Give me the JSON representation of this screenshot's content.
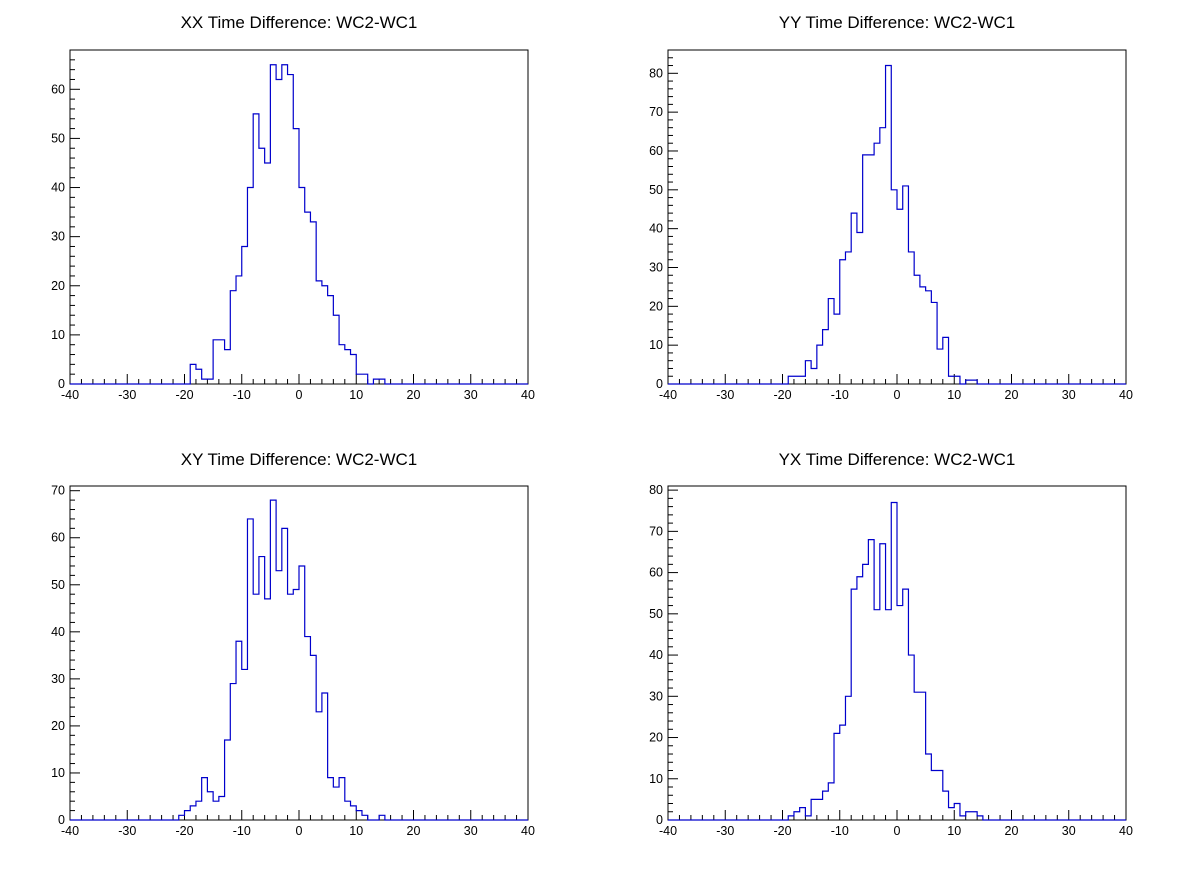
{
  "chart_data": [
    {
      "type": "histogram",
      "title": "XX Time Difference: WC2-WC1",
      "xlim": [
        -40,
        40
      ],
      "ylim": [
        0,
        68
      ],
      "xticks": [
        -40,
        -30,
        -20,
        -10,
        0,
        10,
        20,
        30,
        40
      ],
      "yticks": [
        0,
        10,
        20,
        30,
        40,
        50,
        60
      ],
      "bin_start": -40,
      "bin_width": 1,
      "counts": [
        0,
        0,
        0,
        0,
        0,
        0,
        0,
        0,
        0,
        0,
        0,
        0,
        0,
        0,
        0,
        0,
        0,
        0,
        0,
        0,
        0,
        4,
        3,
        1,
        1,
        9,
        9,
        7,
        19,
        22,
        28,
        40,
        55,
        48,
        45,
        65,
        62,
        65,
        63,
        52,
        40,
        35,
        33,
        21,
        20,
        18,
        14,
        8,
        7,
        6,
        2,
        2,
        0,
        1,
        1,
        0,
        0,
        0,
        0,
        0,
        0,
        0,
        0,
        0,
        0,
        0,
        0,
        0,
        0,
        0,
        0,
        0,
        0,
        0,
        0,
        0,
        0,
        0,
        0,
        0
      ],
      "line_color": "#0000cc"
    },
    {
      "type": "histogram",
      "title": "YY Time Difference: WC2-WC1",
      "xlim": [
        -40,
        40
      ],
      "ylim": [
        0,
        86
      ],
      "xticks": [
        -40,
        -30,
        -20,
        -10,
        0,
        10,
        20,
        30,
        40
      ],
      "yticks": [
        0,
        10,
        20,
        30,
        40,
        50,
        60,
        70,
        80
      ],
      "bin_start": -40,
      "bin_width": 1,
      "counts": [
        0,
        0,
        0,
        0,
        0,
        0,
        0,
        0,
        0,
        0,
        0,
        0,
        0,
        0,
        0,
        0,
        0,
        0,
        0,
        0,
        0,
        2,
        2,
        2,
        6,
        4,
        10,
        14,
        22,
        18,
        32,
        34,
        44,
        39,
        59,
        59,
        62,
        66,
        82,
        50,
        45,
        51,
        34,
        28,
        25,
        24,
        21,
        9,
        12,
        2,
        2,
        0,
        1,
        1,
        0,
        0,
        0,
        0,
        0,
        0,
        0,
        0,
        0,
        0,
        0,
        0,
        0,
        0,
        0,
        0,
        0,
        0,
        0,
        0,
        0,
        0,
        0,
        0,
        0,
        0
      ],
      "line_color": "#0000cc"
    },
    {
      "type": "histogram",
      "title": "XY Time Difference: WC2-WC1",
      "xlim": [
        -40,
        40
      ],
      "ylim": [
        0,
        71
      ],
      "xticks": [
        -40,
        -30,
        -20,
        -10,
        0,
        10,
        20,
        30,
        40
      ],
      "yticks": [
        0,
        10,
        20,
        30,
        40,
        50,
        60,
        70
      ],
      "bin_start": -40,
      "bin_width": 1,
      "counts": [
        0,
        0,
        0,
        0,
        0,
        0,
        0,
        0,
        0,
        0,
        0,
        0,
        0,
        0,
        0,
        0,
        0,
        0,
        0,
        1,
        2,
        3,
        4,
        9,
        6,
        4,
        5,
        17,
        29,
        38,
        32,
        64,
        48,
        56,
        47,
        68,
        53,
        62,
        48,
        49,
        54,
        39,
        35,
        23,
        27,
        9,
        7,
        9,
        4,
        3,
        2,
        1,
        0,
        0,
        1,
        0,
        0,
        0,
        0,
        0,
        0,
        0,
        0,
        0,
        0,
        0,
        0,
        0,
        0,
        0,
        0,
        0,
        0,
        0,
        0,
        0,
        0,
        0,
        0,
        0
      ],
      "line_color": "#0000cc"
    },
    {
      "type": "histogram",
      "title": "YX Time Difference: WC2-WC1",
      "xlim": [
        -40,
        40
      ],
      "ylim": [
        0,
        81
      ],
      "xticks": [
        -40,
        -30,
        -20,
        -10,
        0,
        10,
        20,
        30,
        40
      ],
      "yticks": [
        0,
        10,
        20,
        30,
        40,
        50,
        60,
        70,
        80
      ],
      "bin_start": -40,
      "bin_width": 1,
      "counts": [
        0,
        0,
        0,
        0,
        0,
        0,
        0,
        0,
        0,
        0,
        0,
        0,
        0,
        0,
        0,
        0,
        0,
        0,
        0,
        0,
        0,
        1,
        2,
        3,
        1,
        5,
        5,
        7,
        9,
        21,
        23,
        30,
        56,
        59,
        62,
        68,
        51,
        67,
        51,
        77,
        52,
        56,
        40,
        31,
        31,
        16,
        12,
        12,
        7,
        3,
        4,
        1,
        2,
        2,
        1,
        0,
        0,
        0,
        0,
        0,
        0,
        0,
        0,
        0,
        0,
        0,
        0,
        0,
        0,
        0,
        0,
        0,
        0,
        0,
        0,
        0,
        0,
        0,
        0,
        0
      ],
      "line_color": "#0000cc"
    }
  ]
}
